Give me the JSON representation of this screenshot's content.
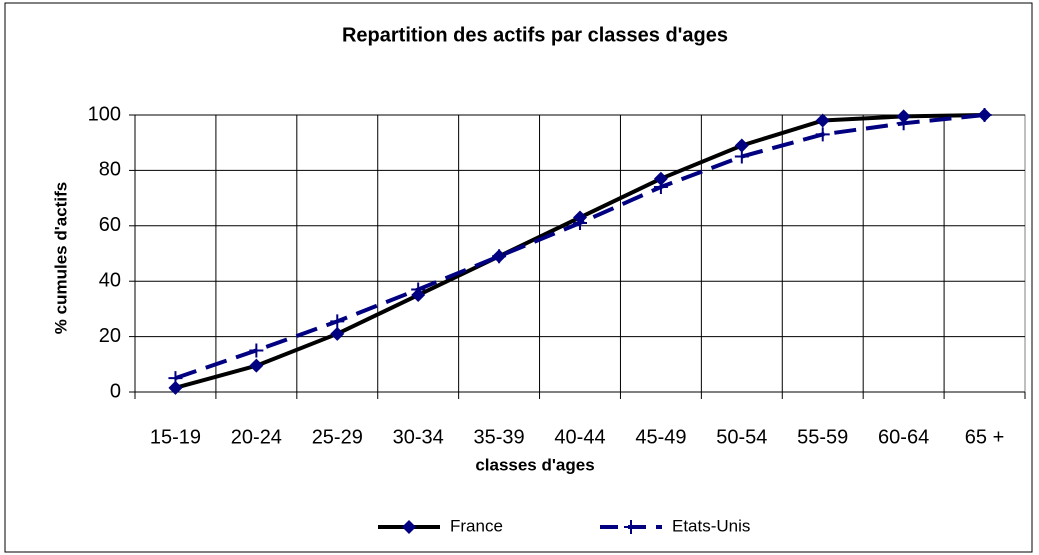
{
  "chart_data": {
    "type": "line",
    "title": "Repartition des actifs par classes d'ages",
    "x_label": "classes d'ages",
    "y_label": "% cumules d'actifs",
    "categories": [
      "15-19",
      "20-24",
      "25-29",
      "30-34",
      "35-39",
      "40-44",
      "45-49",
      "50-54",
      "55-59",
      "60-64",
      "65 +"
    ],
    "series": [
      {
        "name": "France",
        "color": "#000000",
        "marker_color": "#000080",
        "values": [
          1.5,
          9.5,
          21,
          35,
          49,
          63,
          77,
          89,
          98,
          99.5,
          100
        ]
      },
      {
        "name": "Etats-Unis",
        "color": "#000080",
        "marker_color": "#000080",
        "values": [
          5,
          15,
          25.5,
          37,
          49,
          61,
          74,
          85,
          93,
          97,
          100
        ]
      }
    ],
    "ylim": [
      0,
      100
    ],
    "yticks": [
      0,
      20,
      40,
      60,
      80,
      100
    ],
    "grid": true,
    "legend": "bottom"
  }
}
